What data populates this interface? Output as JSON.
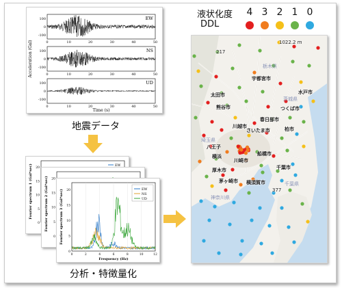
{
  "labels": {
    "seismic": "地震データ",
    "analysis": "分析・特徴量化",
    "legend_title_1": "液状化度",
    "legend_title_2": "DDL"
  },
  "legend": [
    {
      "value": "4",
      "color": "#e31f1f"
    },
    {
      "value": "3",
      "color": "#f07c1e"
    },
    {
      "value": "2",
      "color": "#f5c019"
    },
    {
      "value": "1",
      "color": "#6ab34a"
    },
    {
      "value": "0",
      "color": "#2fa9e0"
    }
  ],
  "seismograph": {
    "ylabel": "Acceleration (Gal)",
    "xlabel": "Time (s)",
    "channels": [
      "EW",
      "NS",
      "UD"
    ],
    "y_ticks": [
      "100",
      "0",
      "-100"
    ],
    "x_ticks": [
      "0",
      "10",
      "20",
      "30",
      "40",
      "50"
    ]
  },
  "spectrum": {
    "back_legend": "EW",
    "front_legend": [
      "EW",
      "NS",
      "UD"
    ],
    "ylabel_front": "Fourier spectrum 3 (Gal*sec)",
    "ylabel_mid": "Fourier spectrum 2 (Gal*sec)",
    "ylabel_back": "Fourier spectrum 1 (Gal*sec)",
    "xlabel": "Frequency (Hz)",
    "x_ticks": [
      "0",
      "2",
      "4",
      "6",
      "8",
      "10",
      "12"
    ],
    "y_ticks": [
      "0",
      "5",
      "10",
      "15",
      "20"
    ],
    "colors": {
      "EW": "#2a78c8",
      "NS": "#e0a030",
      "UD": "#3aa63a"
    }
  },
  "map": {
    "cities": [
      {
        "name": "宇都宮市"
      },
      {
        "name": "つくば市"
      },
      {
        "name": "水戸市"
      },
      {
        "name": "太田市"
      },
      {
        "name": "熊谷市"
      },
      {
        "name": "川越市"
      },
      {
        "name": "春日部市"
      },
      {
        "name": "さいたま市"
      },
      {
        "name": "柏市"
      },
      {
        "name": "船橋市"
      },
      {
        "name": "八王子"
      },
      {
        "name": "横浜"
      },
      {
        "name": "川崎市"
      },
      {
        "name": "千葉市"
      },
      {
        "name": "厚木市"
      },
      {
        "name": "茅ヶ崎市"
      },
      {
        "name": "横須賀市"
      }
    ],
    "prefs": [
      "栃木県",
      "茨城県",
      "埼玉県",
      "千葉県",
      "神奈川県"
    ],
    "roads": [
      "1022.2 m",
      "217",
      "377"
    ]
  }
}
